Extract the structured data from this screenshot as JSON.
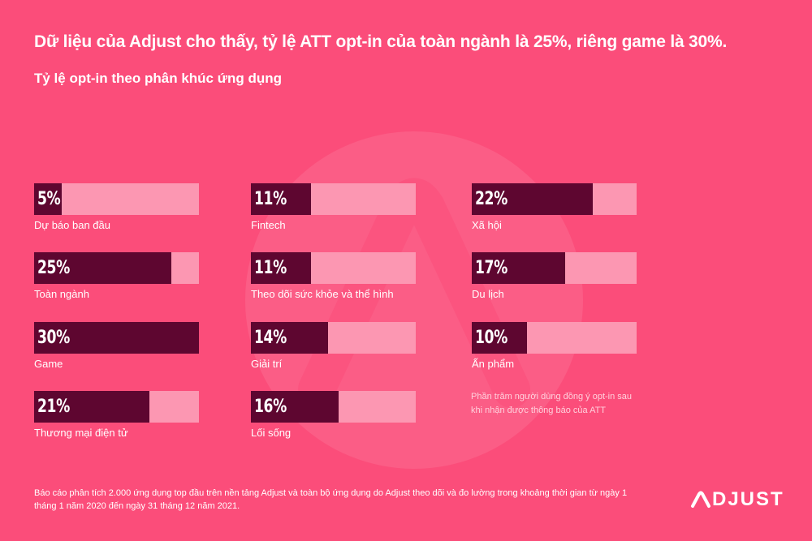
{
  "header": {
    "title": "Dữ liệu của Adjust cho thấy, tỷ lệ ATT opt-in của toàn ngành là 25%, riêng game là 30%.",
    "subtitle": "Tỷ lệ opt-in theo phân khúc ứng dụng"
  },
  "chart_data": {
    "type": "bar",
    "title": "Tỷ lệ opt-in theo phân khúc ứng dụng",
    "unit": "%",
    "ylim": [
      0,
      30
    ],
    "categories": [
      "Dự báo ban đầu",
      "Toàn ngành",
      "Game",
      "Thương mại điện tử",
      "Fintech",
      "Theo dõi sức khỏe và thể hình",
      "Giải trí",
      "Lối sống",
      "Xã hội",
      "Du lịch",
      "Ấn phẩm"
    ],
    "values": [
      5,
      25,
      30,
      21,
      11,
      11,
      14,
      16,
      22,
      17,
      10
    ],
    "value_labels": [
      "5%",
      "25%",
      "30%",
      "21%",
      "11%",
      "11%",
      "14%",
      "16%",
      "22%",
      "17%",
      "10%"
    ]
  },
  "note": "Phần trăm người dùng đồng ý opt-in sau khi nhận được thông báo của ATT",
  "footnote": "Báo cáo phân tích 2.000 ứng dụng top đầu trên nền tảng Adjust và toàn bộ ứng dụng do Adjust theo dõi và đo lường trong khoảng thời gian từ ngày 1 tháng 1 năm 2020 đến ngày 31 tháng 12 năm 2021.",
  "brand": {
    "logo_text": "DJUST",
    "logo_icon": "adjust-a-logo-icon"
  },
  "colors": {
    "background": "#fb4d7a",
    "bar_fill": "#5e0630",
    "bar_track": "#fc97b2"
  }
}
